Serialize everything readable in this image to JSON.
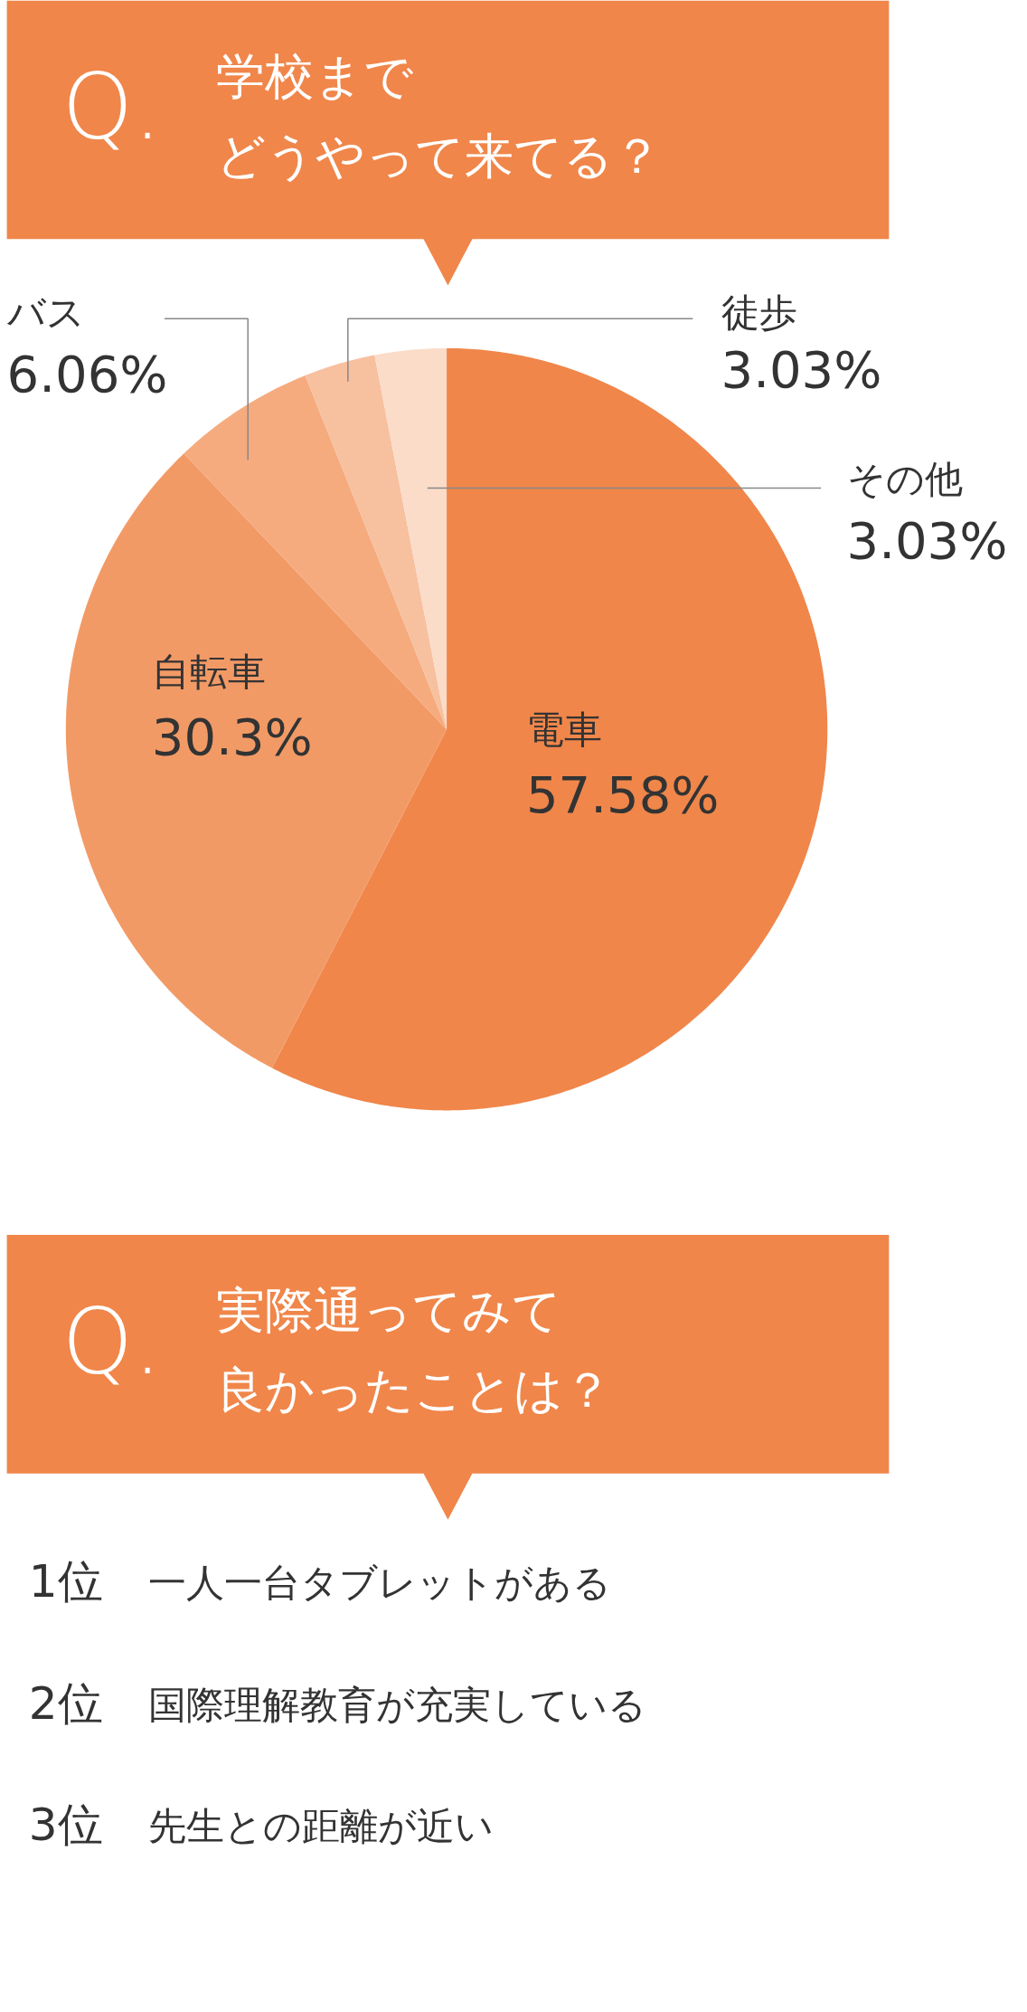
{
  "chart_data": [
    {
      "type": "pie",
      "title": "学校まで",
      "subtitle": "どうやって来てる？",
      "annotations": [
        "Q."
      ],
      "categories": [
        "電車",
        "自転車",
        "バス",
        "徒歩",
        "その他"
      ],
      "values": [
        57.58,
        30.3,
        6.06,
        3.03,
        3.03
      ],
      "value_labels": [
        "57.58%",
        "30.3%",
        "6.06%",
        "3.03%",
        "3.03%"
      ],
      "colors": [
        "#f0864a",
        "#f29a66",
        "#f5ab7e",
        "#f7c09f",
        "#fbdcc8"
      ]
    },
    {
      "type": "other",
      "title": "実際通ってみて",
      "subtitle": "良かったことは？",
      "annotations": [
        "Q.",
        "1位",
        "一人一台タブレットがある",
        "2位",
        "国際理解教育が充実している",
        "3位",
        "先生との距離が近い"
      ]
    }
  ]
}
